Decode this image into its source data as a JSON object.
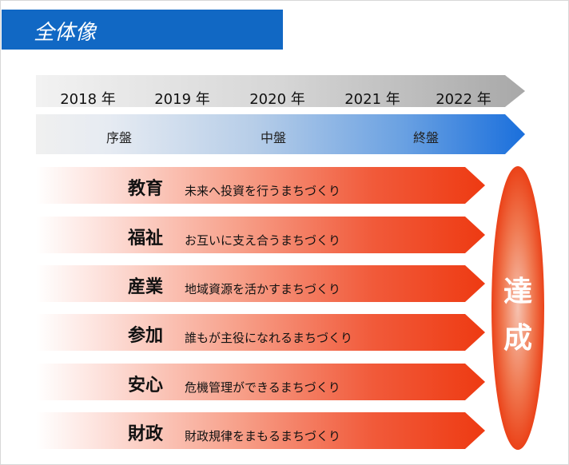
{
  "title": "全体像",
  "years": [
    "2018 年",
    "2019 年",
    "2020 年",
    "2021 年",
    "2022 年"
  ],
  "phases": [
    "序盤",
    "中盤",
    "終盤"
  ],
  "rows": [
    {
      "label": "教育",
      "desc": "未来へ投資を行うまちづくり"
    },
    {
      "label": "福祉",
      "desc": "お互いに支え合うまちづくり"
    },
    {
      "label": "産業",
      "desc": "地域資源を活かすまちづくり"
    },
    {
      "label": "参加",
      "desc": "誰もが主役になれるまちづくり"
    },
    {
      "label": "安心",
      "desc": "危機管理ができるまちづくり"
    },
    {
      "label": "財政",
      "desc": "財政規律をまもるまちづくり"
    }
  ],
  "goal": [
    "達",
    "成"
  ],
  "colors": {
    "title_bar": "#1168c4",
    "phase_arrow_end": "#1a6fdc",
    "row_arrow_end": "#ee3a12",
    "goal_oval": "#e0300a"
  }
}
